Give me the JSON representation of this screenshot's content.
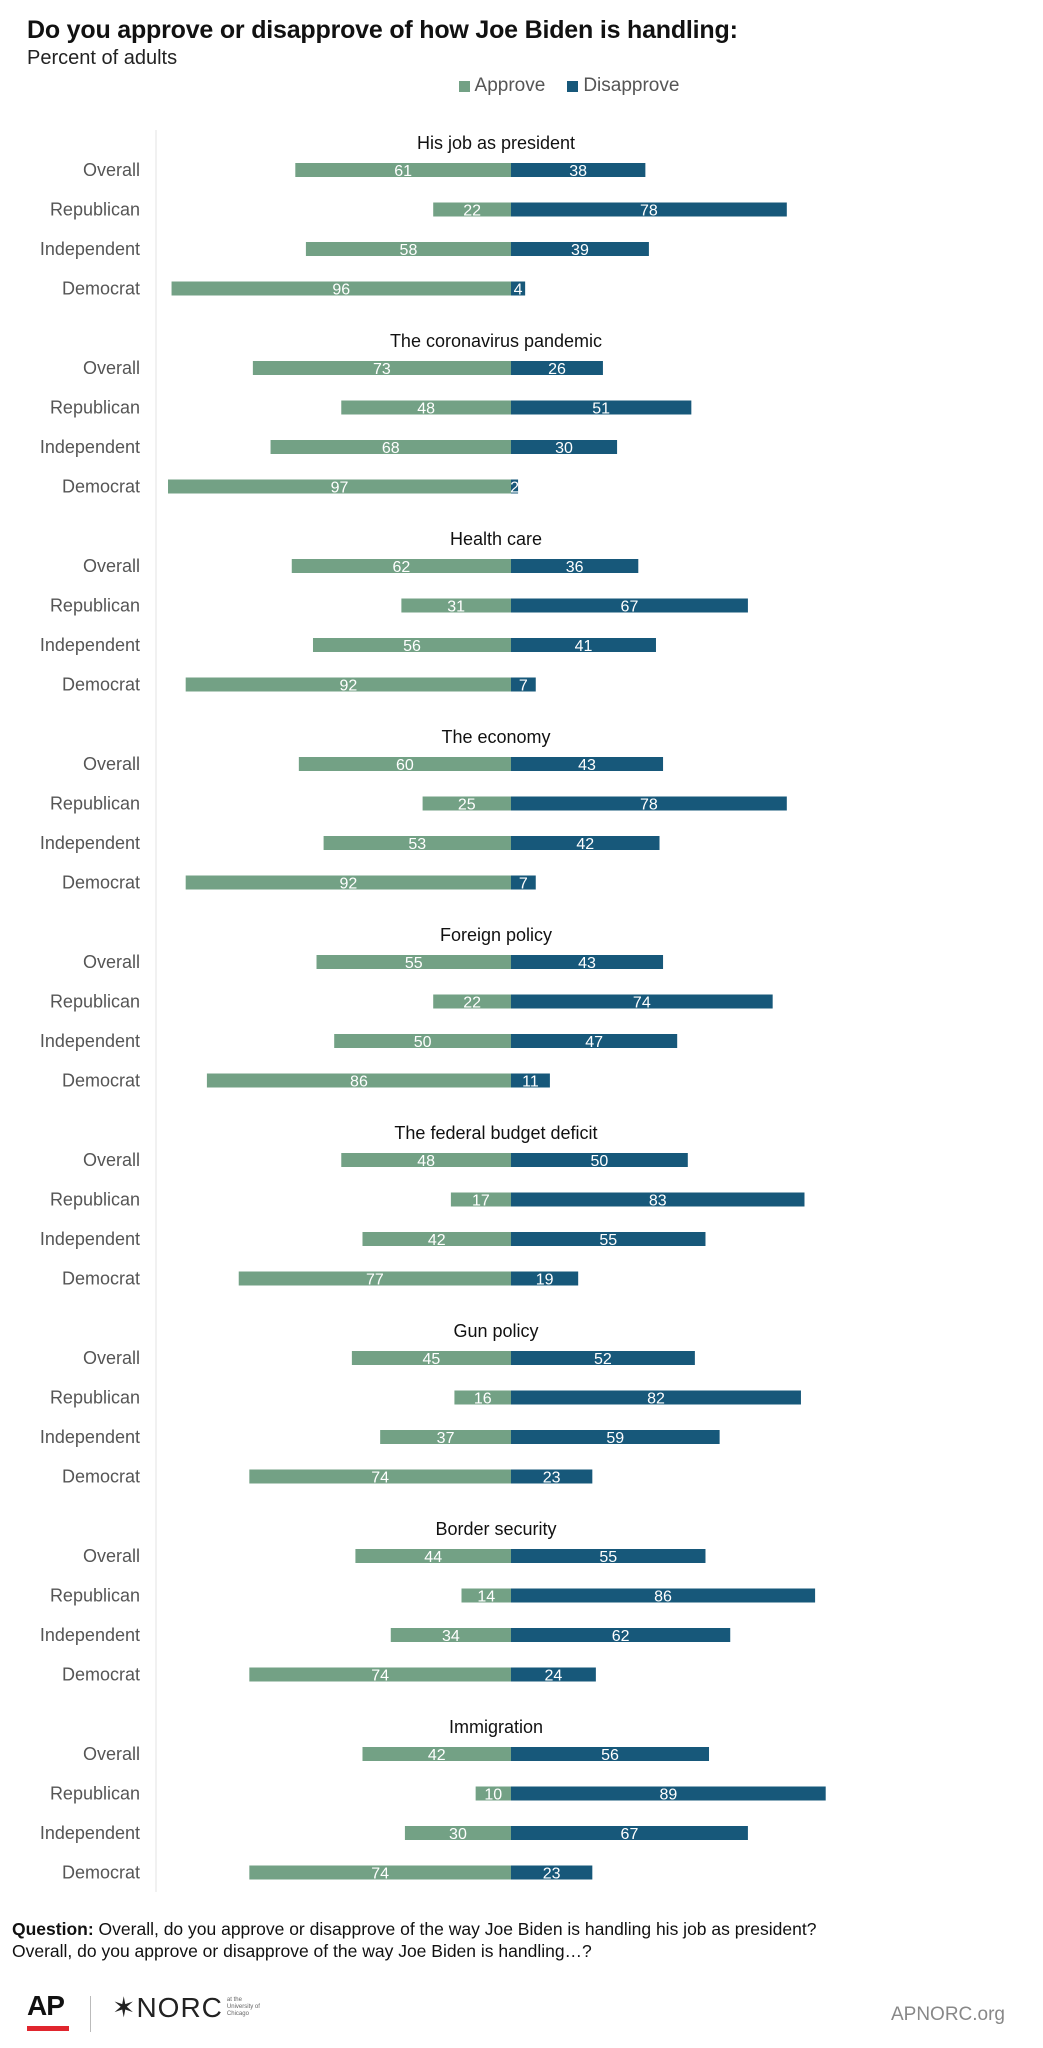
{
  "title": "Do you approve or disapprove of how Joe Biden is handling:",
  "subtitle": "Percent of adults",
  "legend": {
    "approve_label": "Approve",
    "disapprove_label": "Disapprove",
    "approve_color": "#73a185",
    "disapprove_color": "#17587a"
  },
  "chart_data": {
    "type": "bar",
    "orientation": "horizontal",
    "stacked": "diverging",
    "title": "Do you approve or disapprove of how Joe Biden is handling:",
    "subtitle": "Percent of adults",
    "categories": [
      "Overall",
      "Republican",
      "Independent",
      "Democrat"
    ],
    "series_names": [
      "Approve",
      "Disapprove"
    ],
    "grid": false,
    "legend_position": "top",
    "panels": [
      {
        "title": "His job as president",
        "approve": [
          61,
          22,
          58,
          96
        ],
        "disapprove": [
          38,
          78,
          39,
          4
        ]
      },
      {
        "title": "The coronavirus pandemic",
        "approve": [
          73,
          48,
          68,
          97
        ],
        "disapprove": [
          26,
          51,
          30,
          2
        ]
      },
      {
        "title": "Health care",
        "approve": [
          62,
          31,
          56,
          92
        ],
        "disapprove": [
          36,
          67,
          41,
          7
        ]
      },
      {
        "title": "The economy",
        "approve": [
          60,
          25,
          53,
          92
        ],
        "disapprove": [
          43,
          78,
          42,
          7
        ]
      },
      {
        "title": "Foreign policy",
        "approve": [
          55,
          22,
          50,
          86
        ],
        "disapprove": [
          43,
          74,
          47,
          11
        ]
      },
      {
        "title": "The federal budget deficit",
        "approve": [
          48,
          17,
          42,
          77
        ],
        "disapprove": [
          50,
          83,
          55,
          19
        ]
      },
      {
        "title": "Gun policy",
        "approve": [
          45,
          16,
          37,
          74
        ],
        "disapprove": [
          52,
          82,
          59,
          23
        ]
      },
      {
        "title": "Border security",
        "approve": [
          44,
          14,
          34,
          74
        ],
        "disapprove": [
          55,
          86,
          62,
          24
        ]
      },
      {
        "title": "Immigration",
        "approve": [
          42,
          10,
          30,
          74
        ],
        "disapprove": [
          56,
          89,
          67,
          23
        ]
      }
    ]
  },
  "footer": {
    "question_label": "Question:",
    "question_line1": " Overall, do you approve or disapprove of the way Joe Biden is handling his job as president?",
    "question_line2": "Overall, do you approve or disapprove of the way Joe Biden is handling…?",
    "logo_ap": "AP",
    "logo_norc": "✶NORC",
    "logo_norc_small": "at the University of Chicago",
    "site": "APNORC.org"
  }
}
